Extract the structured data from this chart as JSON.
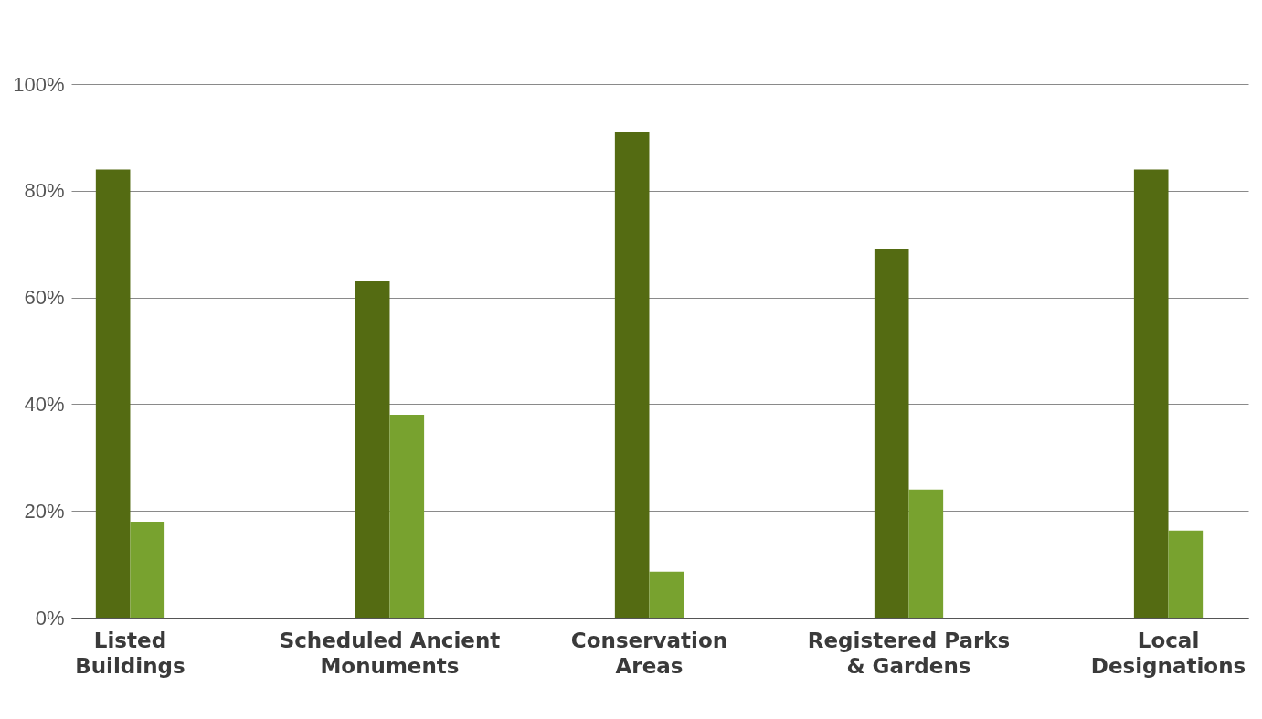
{
  "chart_data": {
    "type": "bar",
    "categories": [
      "Listed Buildings",
      "Scheduled Ancient Monuments",
      "Conservation Areas",
      "Registered Parks & Gardens",
      "Local Designations"
    ],
    "series": [
      {
        "color": "#546b12",
        "values": [
          84,
          63,
          91,
          69,
          84
        ]
      },
      {
        "color": "#78a22f",
        "values": [
          18,
          38,
          8.6,
          24,
          16.3
        ]
      }
    ],
    "ylim": [
      0,
      100
    ],
    "yticks": [
      {
        "value": 0,
        "label": "0%"
      },
      {
        "value": 20,
        "label": "20%"
      },
      {
        "value": 40,
        "label": "40%"
      },
      {
        "value": 60,
        "label": "60%"
      },
      {
        "value": 80,
        "label": "80%"
      },
      {
        "value": 100,
        "label": "100%"
      }
    ],
    "grid": "y",
    "legend": false
  }
}
